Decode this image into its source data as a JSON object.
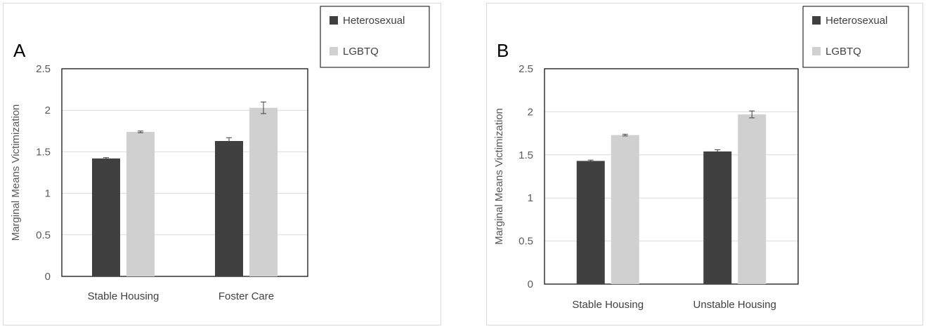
{
  "colors": {
    "heterosexual": "#404040",
    "lgbtq": "#d0d0d0",
    "gridline": "#d9d9d9",
    "plot_border": "#000000",
    "error_bar": "#404040"
  },
  "chart_data": [
    {
      "type": "bar",
      "panel_label": "A",
      "categories": [
        "Stable Housing",
        "Foster Care"
      ],
      "series": [
        {
          "name": "Heterosexual",
          "values": [
            1.42,
            1.63
          ],
          "errors": [
            0.01,
            0.04
          ]
        },
        {
          "name": "LGBTQ",
          "values": [
            1.74,
            2.03
          ],
          "errors": [
            0.01,
            0.07
          ]
        }
      ],
      "ylabel": "Marginal Means Victimization",
      "xlabel": "",
      "ylim": [
        0,
        2.5
      ],
      "yticks": [
        "0",
        "0.5",
        "1",
        "1.5",
        "2",
        "2.5"
      ],
      "ytick_values": [
        0,
        0.5,
        1,
        1.5,
        2,
        2.5
      ],
      "grid": true,
      "legend_position": "top-right"
    },
    {
      "type": "bar",
      "panel_label": "B",
      "categories": [
        "Stable Housing",
        "Unstable Housing"
      ],
      "series": [
        {
          "name": "Heterosexual",
          "values": [
            1.43,
            1.54
          ],
          "errors": [
            0.01,
            0.02
          ]
        },
        {
          "name": "LGBTQ",
          "values": [
            1.73,
            1.97
          ],
          "errors": [
            0.01,
            0.04
          ]
        }
      ],
      "ylabel": "Marginal Means Victimization",
      "xlabel": "",
      "ylim": [
        0,
        2.5
      ],
      "yticks": [
        "0",
        "0.5",
        "1",
        "1.5",
        "2",
        "2.5"
      ],
      "ytick_values": [
        0,
        0.5,
        1,
        1.5,
        2,
        2.5
      ],
      "grid": true,
      "legend_position": "top-right"
    }
  ]
}
